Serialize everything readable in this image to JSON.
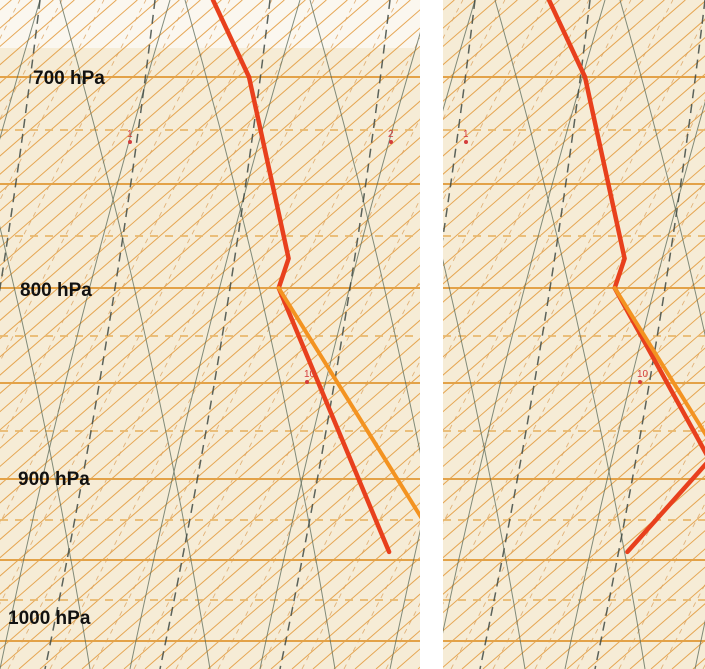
{
  "chart_data": {
    "type": "line",
    "title": "",
    "ylabel": "",
    "xlabel": "",
    "y_scale": "log-pressure (inverted)",
    "pressure_levels_hPa": [
      700,
      800,
      900,
      1000
    ],
    "pressure_labels": [
      "700 hPa",
      "800 hPa",
      "900 hPa",
      "1000 hPa"
    ],
    "mixing_ratio_labels": [
      "1",
      "1",
      "2",
      "10",
      "2"
    ],
    "panels": [
      {
        "name": "left",
        "series": [
          {
            "kind": "temperature",
            "color": "#e8401d",
            "points_rel": [
              [
                0,
                700
              ],
              [
                -3,
                786
              ],
              [
                -7,
                800
              ],
              [
                0,
                945
              ]
            ]
          },
          {
            "kind": "adiabatic-descent",
            "color": "#f39321",
            "points_rel": [
              [
                -7,
                800
              ],
              [
                11.5,
                945
              ]
            ]
          }
        ]
      },
      {
        "name": "right",
        "series": [
          {
            "kind": "temperature",
            "color": "#e8401d",
            "points_rel": [
              [
                0,
                700
              ],
              [
                -3,
                786
              ],
              [
                -7,
                800
              ],
              [
                2.5,
                890
              ],
              [
                -21,
                945
              ]
            ]
          },
          {
            "kind": "adiabatic-descent",
            "color": "#f39321",
            "points_rel": [
              [
                -7,
                800
              ],
              [
                11.5,
                945
              ]
            ]
          }
        ]
      }
    ],
    "grid": true,
    "legend": "none",
    "colors": {
      "isobar": "#e3a248",
      "temperature": "#e8401d",
      "descent": "#f39321",
      "dry_adiabat": "#5a6a58",
      "moist_adiabat": "#404a44",
      "mixing_ratio": "#d43c3c"
    }
  }
}
